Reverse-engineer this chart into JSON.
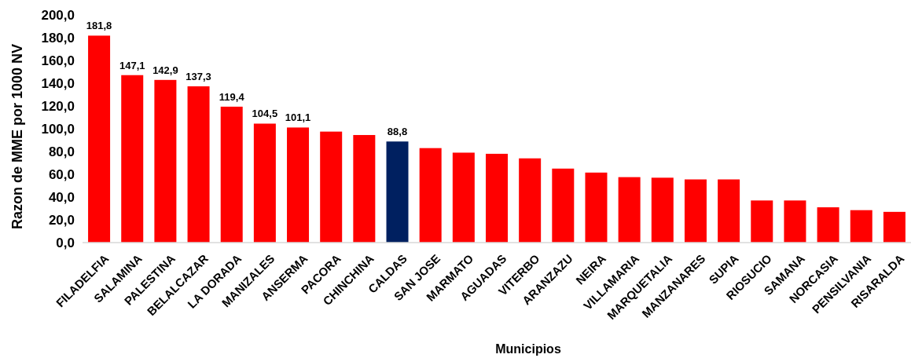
{
  "chart_data": {
    "type": "bar",
    "xlabel": "Municipios",
    "ylabel": "Razon de MME por 1000 NV",
    "categories": [
      "FILADELFIA",
      "SALAMINA",
      "PALESTINA",
      "BELALCAZAR",
      "LA DORADA",
      "MANIZALES",
      "ANSERMA",
      "PACORA",
      "CHINCHINA",
      "CALDAS",
      "SAN JOSE",
      "MARMATO",
      "AGUADAS",
      "VITERBO",
      "ARANZAZU",
      "NEIRA",
      "VILLAMARIA",
      "MARQUETALIA",
      "MANZANARES",
      "SUPIA",
      "RIOSUCIO",
      "SAMANA",
      "NORCASIA",
      "PENSILVANIA",
      "RISARALDA"
    ],
    "values": [
      181.8,
      147.1,
      142.9,
      137.3,
      119.4,
      104.5,
      101.1,
      97.5,
      94.5,
      88.8,
      83,
      79,
      78,
      74,
      65,
      61.5,
      57.5,
      57,
      55.5,
      55.5,
      37,
      37,
      31,
      28.5,
      27
    ],
    "colors": [
      "#ff0000",
      "#ff0000",
      "#ff0000",
      "#ff0000",
      "#ff0000",
      "#ff0000",
      "#ff0000",
      "#ff0000",
      "#ff0000",
      "#002060",
      "#ff0000",
      "#ff0000",
      "#ff0000",
      "#ff0000",
      "#ff0000",
      "#ff0000",
      "#ff0000",
      "#ff0000",
      "#ff0000",
      "#ff0000",
      "#ff0000",
      "#ff0000",
      "#ff0000",
      "#ff0000",
      "#ff0000"
    ],
    "value_labels": [
      "181,8",
      "147,1",
      "142,9",
      "137,3",
      "119,4",
      "104,5",
      "101,1",
      null,
      null,
      "88,8",
      null,
      null,
      null,
      null,
      null,
      null,
      null,
      null,
      null,
      null,
      null,
      null,
      null,
      null,
      null
    ],
    "ylim": [
      0,
      200
    ],
    "yticks": [
      {
        "value": 0,
        "label": "0,0"
      },
      {
        "value": 20,
        "label": "20,0"
      },
      {
        "value": 40,
        "label": "40,0"
      },
      {
        "value": 60,
        "label": "60,0"
      },
      {
        "value": 80,
        "label": "80,0"
      },
      {
        "value": 100,
        "label": "100,0"
      },
      {
        "value": 120,
        "label": "120,0"
      },
      {
        "value": 140,
        "label": "140,0"
      },
      {
        "value": 160,
        "label": "160,0"
      },
      {
        "value": 180,
        "label": "180,0"
      },
      {
        "value": 200,
        "label": "200,0"
      }
    ],
    "grid": false
  }
}
